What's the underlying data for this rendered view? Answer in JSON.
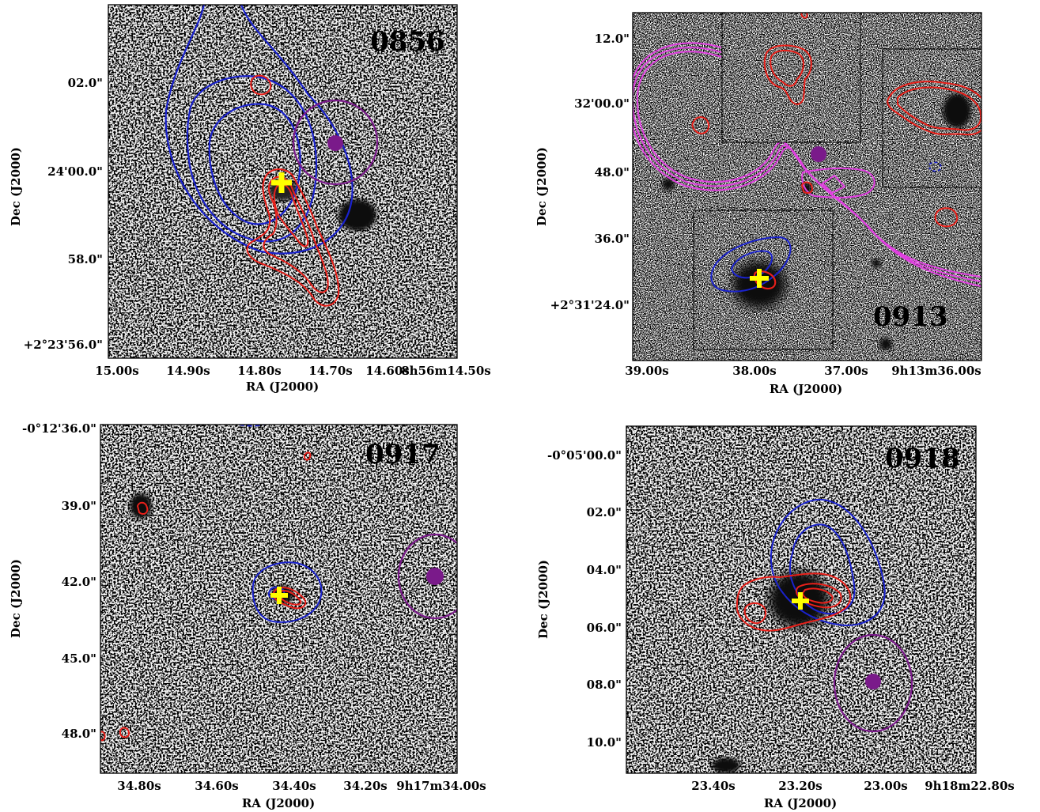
{
  "panels": [
    {
      "id": "0856",
      "xlabel": "RA (J2000)",
      "ylabel": "Dec (J2000)",
      "x_ticks": [
        "15.00s",
        "14.90s",
        "14.80s",
        "14.70s",
        "14.60s",
        "8h56m14.50s"
      ],
      "y_ticks": [
        "02.0\"",
        "24'00.0\"",
        "58.0\"",
        "+2°23'56.0\""
      ]
    },
    {
      "id": "0913",
      "xlabel": "RA (J2000)",
      "ylabel": "Dec (J2000)",
      "x_ticks": [
        "39.00s",
        "38.00s",
        "37.00s",
        "9h13m36.00s"
      ],
      "y_ticks": [
        "12.0\"",
        "32'00.0\"",
        "48.0\"",
        "36.0\"",
        "+2°31'24.0\""
      ]
    },
    {
      "id": "0917",
      "xlabel": "RA (J2000)",
      "ylabel": "Dec (J2000)",
      "x_ticks": [
        "34.80s",
        "34.60s",
        "34.40s",
        "34.20s",
        "9h17m34.00s"
      ],
      "y_ticks": [
        "-0°12'36.0\"",
        "39.0\"",
        "42.0\"",
        "45.0\"",
        "48.0\""
      ]
    },
    {
      "id": "0918",
      "xlabel": "RA (J2000)",
      "ylabel": "Dec (J2000)",
      "x_ticks": [
        "23.40s",
        "23.20s",
        "23.00s",
        "9h18m22.80s"
      ],
      "y_ticks": [
        "-0°05'00.0\"",
        "02.0\"",
        "04.0\"",
        "06.0\"",
        "08.0\"",
        "10.0\""
      ]
    }
  ],
  "colors": {
    "contour_radio": "#e8201a",
    "contour_blue": "#1a22cc",
    "contour_magenta": "#e040e0",
    "marker_centroid": "#ffff00",
    "marker_position": "#7a1a8a",
    "circle_error": "#7a1a8a"
  }
}
